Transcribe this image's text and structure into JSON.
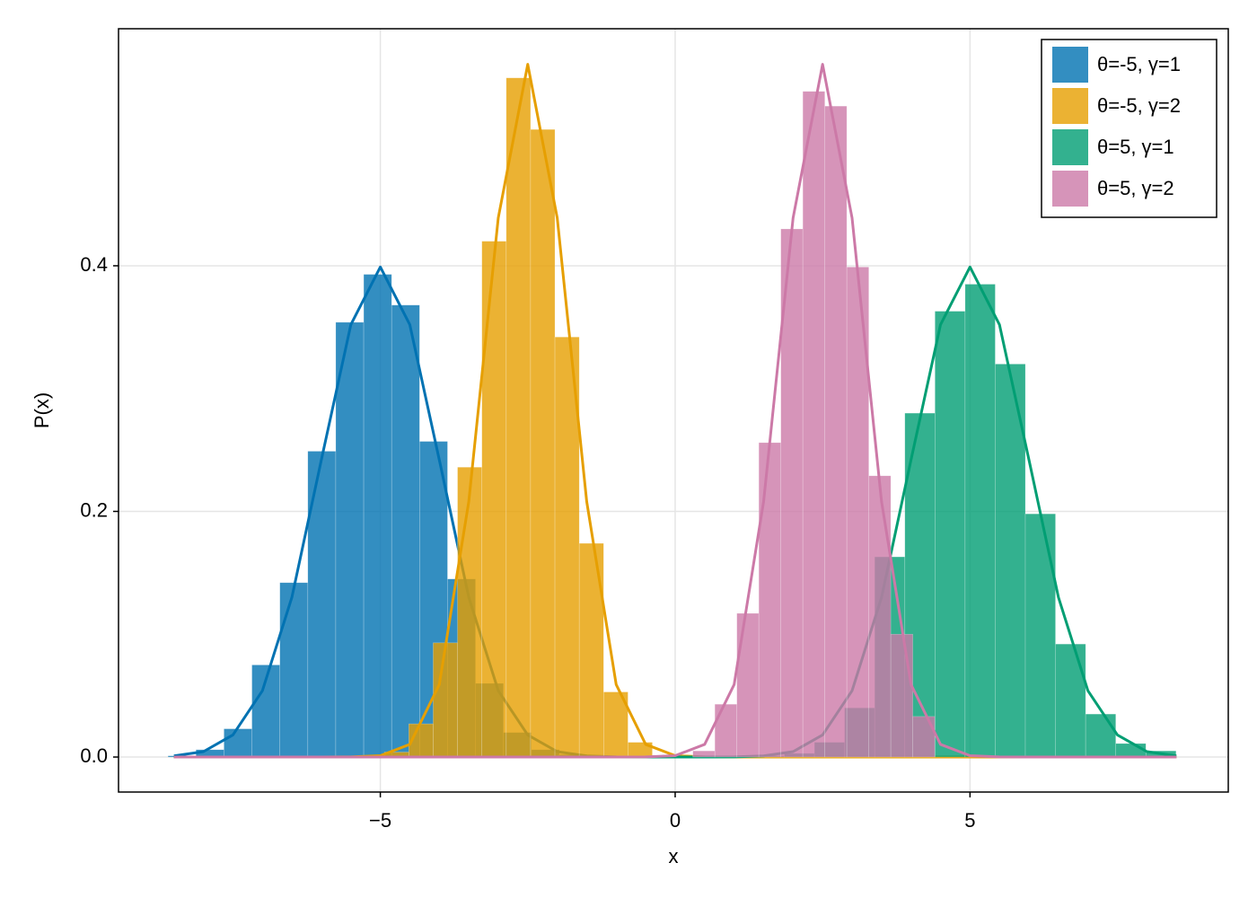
{
  "chart_data": {
    "type": "histogram",
    "xlabel": "x",
    "ylabel": "P(x)",
    "xlim": [
      -9.44,
      9.38
    ],
    "ylim": [
      -0.0285,
      0.593
    ],
    "xticks": [
      {
        "value": -5,
        "label": "−5"
      },
      0,
      5
    ],
    "yticks": [
      {
        "value": 0,
        "label": "0.0"
      },
      0.2,
      0.4
    ],
    "grid": true,
    "legend_position": "top-right",
    "x": [
      -8.5,
      -8,
      -7.5,
      -7,
      -6.5,
      -6,
      -5.5,
      -5,
      -4.5,
      -4,
      -3.5,
      -3,
      -2.5,
      -2,
      -1.5,
      -1,
      -0.5,
      0,
      0.5,
      1,
      1.5,
      2,
      2.5,
      3,
      3.5,
      4,
      4.5,
      5,
      5.5,
      6,
      6.5,
      7,
      7.5,
      8,
      8.5
    ],
    "series": [
      {
        "name": "θ=-5, γ=1",
        "color": "#0072b2",
        "bins": [
          -8.6,
          -8.126,
          -7.652,
          -7.178,
          -6.704,
          -6.23,
          -5.756,
          -5.282,
          -4.808,
          -4.334,
          -3.86,
          -3.386,
          -2.912,
          -2.438,
          -1.964,
          -1.49
        ],
        "values": [
          0.001,
          0.006,
          0.023,
          0.075,
          0.142,
          0.249,
          0.354,
          0.393,
          0.368,
          0.257,
          0.145,
          0.06,
          0.02,
          0.006,
          0.002
        ],
        "curve_values": [
          0.0009,
          0.0044,
          0.018,
          0.054,
          0.13,
          0.242,
          0.352,
          0.399,
          0.352,
          0.242,
          0.13,
          0.054,
          0.018,
          0.0044,
          0.0009,
          0.0001,
          0,
          0,
          0,
          0,
          0,
          0,
          0,
          0,
          0,
          0,
          0,
          0,
          0,
          0,
          0,
          0,
          0,
          0,
          0
        ]
      },
      {
        "name": "θ=-5, γ=2",
        "color": "#e69f00",
        "bins": [
          -4.93,
          -4.517,
          -4.104,
          -3.691,
          -3.278,
          -2.865,
          -2.452,
          -2.039,
          -1.626,
          -1.213,
          -0.8,
          -0.387
        ],
        "values": [
          0.004,
          0.027,
          0.093,
          0.236,
          0.42,
          0.553,
          0.511,
          0.342,
          0.174,
          0.053,
          0.012
        ],
        "curve_values": [
          0,
          0,
          0,
          0,
          0,
          0,
          0.0001,
          0.0011,
          0.0103,
          0.059,
          0.208,
          0.439,
          0.564,
          0.439,
          0.208,
          0.059,
          0.0103,
          0.0011,
          0.0001,
          0,
          0,
          0,
          0,
          0,
          0,
          0,
          0,
          0,
          0,
          0,
          0,
          0,
          0,
          0,
          0
        ]
      },
      {
        "name": "θ=5, γ=1",
        "color": "#009e73",
        "bins": [
          1.34,
          1.851,
          2.362,
          2.873,
          3.384,
          3.895,
          4.406,
          4.917,
          5.428,
          5.939,
          6.45,
          6.961,
          7.472,
          7.983,
          8.494
        ],
        "values": [
          0.001,
          0.003,
          0.012,
          0.04,
          0.163,
          0.28,
          0.363,
          0.385,
          0.32,
          0.198,
          0.092,
          0.035,
          0.011,
          0.005
        ],
        "curve_values": [
          0,
          0,
          0,
          0,
          0,
          0,
          0,
          0,
          0,
          0,
          0,
          0,
          0,
          0,
          0,
          0,
          0,
          0,
          0,
          0.0001,
          0.0009,
          0.0044,
          0.018,
          0.054,
          0.13,
          0.242,
          0.352,
          0.399,
          0.352,
          0.242,
          0.13,
          0.054,
          0.018,
          0.0044,
          0.0009
        ]
      },
      {
        "name": "θ=5, γ=2",
        "color": "#cc79a7",
        "bins": [
          0.3,
          0.673,
          1.046,
          1.419,
          1.792,
          2.165,
          2.538,
          2.911,
          3.284,
          3.657,
          4.03,
          4.403
        ],
        "values": [
          0.005,
          0.043,
          0.117,
          0.256,
          0.43,
          0.542,
          0.53,
          0.399,
          0.229,
          0.1,
          0.033
        ],
        "curve_values": [
          0,
          0,
          0,
          0,
          0,
          0,
          0,
          0,
          0,
          0,
          0,
          0,
          0,
          0,
          0,
          0,
          0.0001,
          0.0011,
          0.0103,
          0.059,
          0.208,
          0.439,
          0.564,
          0.439,
          0.208,
          0.059,
          0.0103,
          0.0011,
          0.0001,
          0,
          0,
          0,
          0,
          0,
          0
        ]
      }
    ]
  }
}
